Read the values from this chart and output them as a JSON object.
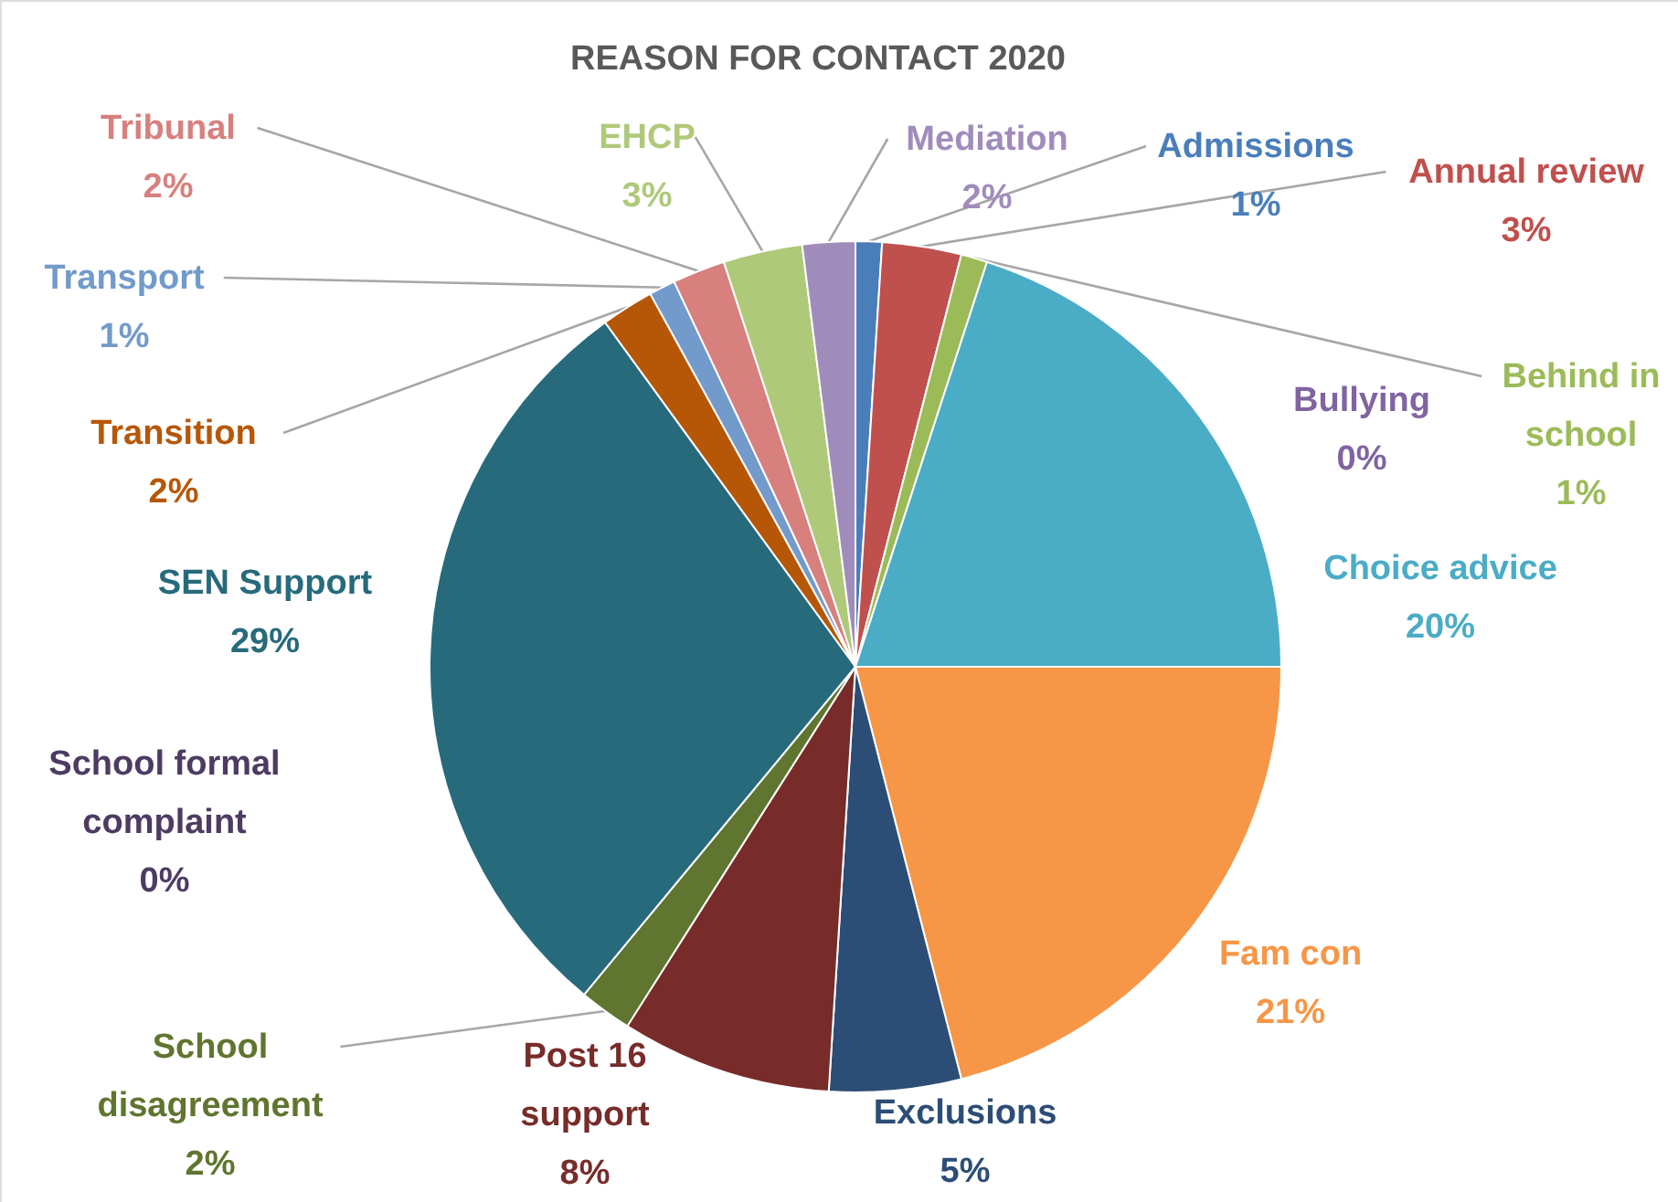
{
  "chart_data": {
    "type": "pie",
    "title": "REASON FOR CONTACT 2020",
    "categories": [
      "Admissions",
      "Annual review",
      "Behind in school",
      "Bullying",
      "Choice advice",
      "Fam con",
      "Exclusions",
      "Post 16 support",
      "School disagreement",
      "School formal complaint",
      "SEN Support",
      "Transition",
      "Transport",
      "Tribunal",
      "EHCP",
      "Mediation"
    ],
    "values": [
      1,
      3,
      1,
      0,
      20,
      21,
      5,
      8,
      2,
      0,
      29,
      2,
      1,
      2,
      3,
      2
    ],
    "value_labels": [
      "1%",
      "3%",
      "1%",
      "0%",
      "20%",
      "21%",
      "5%",
      "8%",
      "2%",
      "0%",
      "29%",
      "2%",
      "1%",
      "2%",
      "3%",
      "2%"
    ],
    "colors": [
      "#4a7ebb",
      "#c0504d",
      "#9bbb59",
      "#8064a2",
      "#4bacc6",
      "#f79646",
      "#2c4d75",
      "#772c2a",
      "#5f7530",
      "#4d3b62",
      "#276a7c",
      "#b65708",
      "#729aca",
      "#d7807e",
      "#afc97a",
      "#a08cbb"
    ]
  }
}
